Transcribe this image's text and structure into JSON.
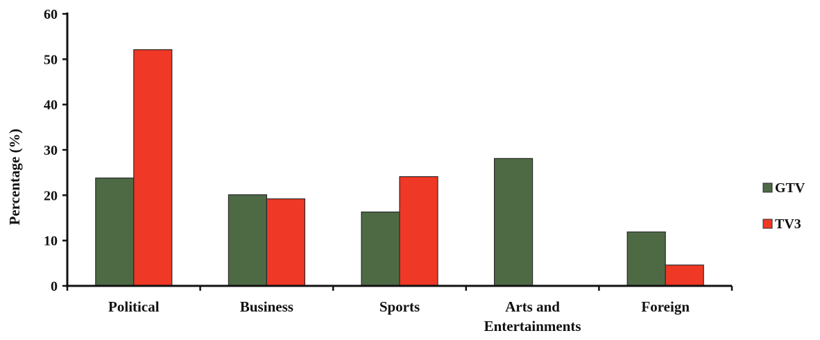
{
  "chart_data": {
    "type": "bar",
    "title": "",
    "xlabel": "",
    "ylabel": "Percentage (%)",
    "ylim": [
      0,
      60
    ],
    "yticks": [
      "0",
      "10",
      "20",
      "30",
      "40",
      "50",
      "60"
    ],
    "categories": [
      [
        "Political"
      ],
      [
        "Business"
      ],
      [
        "Sports"
      ],
      [
        "Arts and",
        "Entertainments"
      ],
      [
        "Foreign"
      ]
    ],
    "series": [
      {
        "name": "GTV",
        "color": "#4e6a45",
        "values": [
          23.8,
          20.1,
          16.3,
          28.1,
          11.9
        ]
      },
      {
        "name": "TV3",
        "color": "#f03826",
        "values": [
          52.1,
          19.2,
          24.1,
          0,
          4.6
        ]
      }
    ],
    "grid": false,
    "legend_position": "right"
  }
}
